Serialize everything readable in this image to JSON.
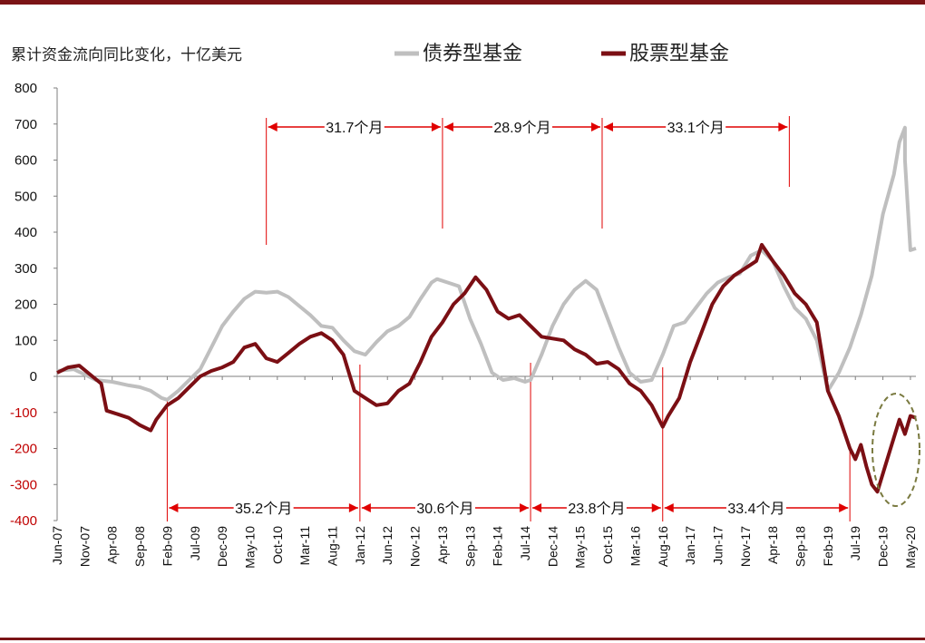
{
  "chart_data": {
    "type": "line",
    "ylabel": "累计资金流向同比变化，十亿美元",
    "ylim": [
      -400,
      800
    ],
    "yticks": [
      "800",
      "700",
      "600",
      "500",
      "400",
      "300",
      "200",
      "100",
      "0",
      "-100",
      "-200",
      "-300",
      "-400"
    ],
    "x_tick_labels": [
      "Jun-07",
      "Nov-07",
      "Apr-08",
      "Sep-08",
      "Feb-09",
      "Jul-09",
      "Dec-09",
      "May-10",
      "Oct-10",
      "Mar-11",
      "Aug-11",
      "Jan-12",
      "Jun-12",
      "Nov-12",
      "Apr-13",
      "Sep-13",
      "Feb-14",
      "Jul-14",
      "Dec-14",
      "May-15",
      "Oct-15",
      "Mar-16",
      "Aug-16",
      "Jan-17",
      "Jun-17",
      "Nov-17",
      "Apr-18",
      "Sep-18",
      "Feb-19",
      "Jul-19",
      "Dec-19",
      "May-20"
    ],
    "x_range": [
      "2007-06",
      "2020-06"
    ],
    "series": [
      {
        "name": "债券型基金",
        "color": "#bfbfbf",
        "points": [
          [
            "2007-06",
            15
          ],
          [
            "2007-09",
            20
          ],
          [
            "2007-11",
            5
          ],
          [
            "2008-01",
            -10
          ],
          [
            "2008-04",
            -15
          ],
          [
            "2008-07",
            -25
          ],
          [
            "2008-09",
            -30
          ],
          [
            "2008-11",
            -40
          ],
          [
            "2009-01",
            -60
          ],
          [
            "2009-02",
            -65
          ],
          [
            "2009-04",
            -40
          ],
          [
            "2009-06",
            -10
          ],
          [
            "2009-08",
            20
          ],
          [
            "2009-10",
            80
          ],
          [
            "2009-12",
            140
          ],
          [
            "2010-02",
            180
          ],
          [
            "2010-04",
            215
          ],
          [
            "2010-06",
            235
          ],
          [
            "2010-08",
            232
          ],
          [
            "2010-10",
            235
          ],
          [
            "2010-12",
            220
          ],
          [
            "2011-02",
            195
          ],
          [
            "2011-04",
            170
          ],
          [
            "2011-06",
            140
          ],
          [
            "2011-08",
            135
          ],
          [
            "2011-10",
            100
          ],
          [
            "2011-12",
            70
          ],
          [
            "2012-02",
            60
          ],
          [
            "2012-04",
            95
          ],
          [
            "2012-06",
            125
          ],
          [
            "2012-08",
            140
          ],
          [
            "2012-10",
            165
          ],
          [
            "2012-12",
            215
          ],
          [
            "2013-02",
            260
          ],
          [
            "2013-03",
            270
          ],
          [
            "2013-05",
            260
          ],
          [
            "2013-07",
            250
          ],
          [
            "2013-09",
            160
          ],
          [
            "2013-11",
            90
          ],
          [
            "2014-01",
            10
          ],
          [
            "2014-03",
            -10
          ],
          [
            "2014-05",
            -5
          ],
          [
            "2014-07",
            -15
          ],
          [
            "2014-08",
            -10
          ],
          [
            "2014-10",
            60
          ],
          [
            "2014-12",
            140
          ],
          [
            "2015-02",
            200
          ],
          [
            "2015-04",
            240
          ],
          [
            "2015-06",
            265
          ],
          [
            "2015-08",
            240
          ],
          [
            "2015-10",
            160
          ],
          [
            "2015-12",
            80
          ],
          [
            "2016-02",
            10
          ],
          [
            "2016-04",
            -15
          ],
          [
            "2016-06",
            -10
          ],
          [
            "2016-08",
            60
          ],
          [
            "2016-10",
            140
          ],
          [
            "2016-12",
            150
          ],
          [
            "2017-02",
            190
          ],
          [
            "2017-04",
            230
          ],
          [
            "2017-06",
            260
          ],
          [
            "2017-08",
            275
          ],
          [
            "2017-10",
            285
          ],
          [
            "2017-12",
            335
          ],
          [
            "2018-02",
            350
          ],
          [
            "2018-04",
            320
          ],
          [
            "2018-06",
            250
          ],
          [
            "2018-08",
            190
          ],
          [
            "2018-10",
            160
          ],
          [
            "2018-12",
            100
          ],
          [
            "2019-02",
            -40
          ],
          [
            "2019-04",
            10
          ],
          [
            "2019-06",
            80
          ],
          [
            "2019-08",
            170
          ],
          [
            "2019-10",
            280
          ],
          [
            "2019-12",
            450
          ],
          [
            "2020-02",
            560
          ],
          [
            "2020-03",
            650
          ],
          [
            "2020-04",
            690
          ],
          [
            "2020-04",
            600
          ],
          [
            "2020-05",
            350
          ],
          [
            "2020-06",
            355
          ]
        ]
      },
      {
        "name": "股票型基金",
        "color": "#7b0f14",
        "points": [
          [
            "2007-06",
            10
          ],
          [
            "2007-08",
            25
          ],
          [
            "2007-10",
            30
          ],
          [
            "2007-12",
            5
          ],
          [
            "2008-02",
            -20
          ],
          [
            "2008-03",
            -95
          ],
          [
            "2008-05",
            -105
          ],
          [
            "2008-07",
            -115
          ],
          [
            "2008-09",
            -135
          ],
          [
            "2008-11",
            -150
          ],
          [
            "2008-12",
            -120
          ],
          [
            "2009-02",
            -80
          ],
          [
            "2009-04",
            -60
          ],
          [
            "2009-06",
            -30
          ],
          [
            "2009-08",
            0
          ],
          [
            "2009-10",
            15
          ],
          [
            "2009-12",
            25
          ],
          [
            "2010-02",
            40
          ],
          [
            "2010-04",
            80
          ],
          [
            "2010-06",
            90
          ],
          [
            "2010-08",
            50
          ],
          [
            "2010-10",
            40
          ],
          [
            "2010-12",
            65
          ],
          [
            "2011-02",
            90
          ],
          [
            "2011-04",
            110
          ],
          [
            "2011-06",
            120
          ],
          [
            "2011-08",
            100
          ],
          [
            "2011-10",
            60
          ],
          [
            "2011-12",
            -40
          ],
          [
            "2012-02",
            -60
          ],
          [
            "2012-04",
            -80
          ],
          [
            "2012-06",
            -75
          ],
          [
            "2012-08",
            -40
          ],
          [
            "2012-10",
            -20
          ],
          [
            "2012-12",
            40
          ],
          [
            "2013-02",
            110
          ],
          [
            "2013-04",
            150
          ],
          [
            "2013-06",
            200
          ],
          [
            "2013-08",
            230
          ],
          [
            "2013-10",
            275
          ],
          [
            "2013-12",
            240
          ],
          [
            "2014-02",
            180
          ],
          [
            "2014-04",
            160
          ],
          [
            "2014-06",
            170
          ],
          [
            "2014-08",
            140
          ],
          [
            "2014-10",
            110
          ],
          [
            "2014-12",
            105
          ],
          [
            "2015-02",
            100
          ],
          [
            "2015-04",
            75
          ],
          [
            "2015-06",
            60
          ],
          [
            "2015-08",
            35
          ],
          [
            "2015-10",
            40
          ],
          [
            "2015-12",
            20
          ],
          [
            "2016-02",
            -20
          ],
          [
            "2016-04",
            -40
          ],
          [
            "2016-06",
            -80
          ],
          [
            "2016-08",
            -140
          ],
          [
            "2016-09",
            -110
          ],
          [
            "2016-11",
            -60
          ],
          [
            "2017-01",
            40
          ],
          [
            "2017-03",
            120
          ],
          [
            "2017-05",
            200
          ],
          [
            "2017-07",
            250
          ],
          [
            "2017-09",
            280
          ],
          [
            "2017-11",
            300
          ],
          [
            "2018-01",
            320
          ],
          [
            "2018-02",
            365
          ],
          [
            "2018-04",
            320
          ],
          [
            "2018-06",
            280
          ],
          [
            "2018-08",
            230
          ],
          [
            "2018-10",
            200
          ],
          [
            "2018-12",
            150
          ],
          [
            "2019-02",
            -40
          ],
          [
            "2019-04",
            -110
          ],
          [
            "2019-06",
            -200
          ],
          [
            "2019-07",
            -230
          ],
          [
            "2019-08",
            -190
          ],
          [
            "2019-09",
            -250
          ],
          [
            "2019-10",
            -300
          ],
          [
            "2019-11",
            -320
          ],
          [
            "2020-01",
            -220
          ],
          [
            "2020-03",
            -120
          ],
          [
            "2020-04",
            -160
          ],
          [
            "2020-05",
            -110
          ],
          [
            "2020-06",
            -115
          ]
        ]
      }
    ],
    "annotations": {
      "top": [
        {
          "label": "31.7个月",
          "from": "2010-08",
          "to": "2013-04"
        },
        {
          "label": "28.9个月",
          "from": "2013-04",
          "to": "2015-09"
        },
        {
          "label": "33.1个月",
          "from": "2015-09",
          "to": "2018-07"
        }
      ],
      "bottom": [
        {
          "label": "35.2个月",
          "from": "2009-02",
          "to": "2012-01"
        },
        {
          "label": "30.6个月",
          "from": "2012-01",
          "to": "2014-08"
        },
        {
          "label": "23.8个月",
          "from": "2014-08",
          "to": "2016-08"
        },
        {
          "label": "33.4个月",
          "from": "2016-08",
          "to": "2019-06"
        }
      ]
    }
  }
}
